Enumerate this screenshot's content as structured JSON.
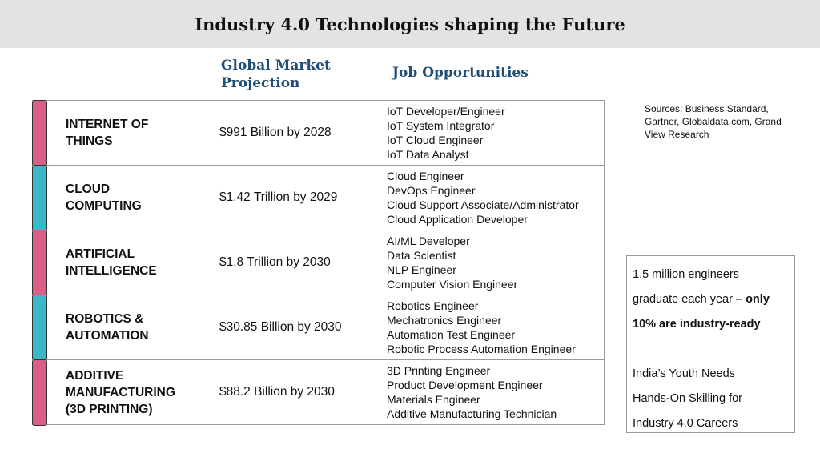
{
  "title": "Industry 4.0 Technologies shaping the Future",
  "headers": {
    "market": "Global Market Projection",
    "jobs": "Job Opportunities"
  },
  "colors": {
    "pink": "#d95f86",
    "teal": "#3ab8c8",
    "header_text": "#1f4e79"
  },
  "rows": [
    {
      "tech_lines": [
        "INTERNET OF",
        "THINGS"
      ],
      "market": "$991 Billion by 2028",
      "jobs": [
        "IoT Developer/Engineer",
        "IoT System Integrator",
        "IoT Cloud Engineer",
        "IoT Data Analyst"
      ]
    },
    {
      "tech_lines": [
        "CLOUD",
        "COMPUTING"
      ],
      "market": "$1.42 Trillion by 2029",
      "jobs": [
        "Cloud Engineer",
        "DevOps Engineer",
        "Cloud Support Associate/Administrator",
        "Cloud Application Developer"
      ]
    },
    {
      "tech_lines": [
        "ARTIFICIAL",
        "INTELLIGENCE"
      ],
      "market": "$1.8 Trillion by 2030",
      "jobs": [
        "AI/ML Developer",
        "Data Scientist",
        "NLP Engineer",
        "Computer Vision Engineer"
      ]
    },
    {
      "tech_lines": [
        "ROBOTICS &",
        "AUTOMATION"
      ],
      "market": "$30.85 Billion by 2030",
      "jobs": [
        "Robotics Engineer",
        "Mechatronics Engineer",
        "Automation Test Engineer",
        "Robotic Process Automation Engineer"
      ]
    },
    {
      "tech_lines": [
        "ADDITIVE",
        "MANUFACTURING",
        "(3D PRINTING)"
      ],
      "market": "$88.2 Billion by 2030",
      "jobs": [
        "3D Printing Engineer",
        "Product Development Engineer",
        "Materials Engineer",
        "Additive Manufacturing Technician"
      ]
    }
  ],
  "sources": "Sources: Business Standard, Gartner, Globaldata.com, Grand View Research",
  "info": {
    "line1": "1.5 million engineers",
    "line2_plain": "graduate each year – ",
    "line2_bold": "only",
    "line3_bold": "10% are industry-ready",
    "line4": "India’s Youth Needs",
    "line5": "Hands-On Skilling for",
    "line6": "Industry 4.0 Careers"
  }
}
